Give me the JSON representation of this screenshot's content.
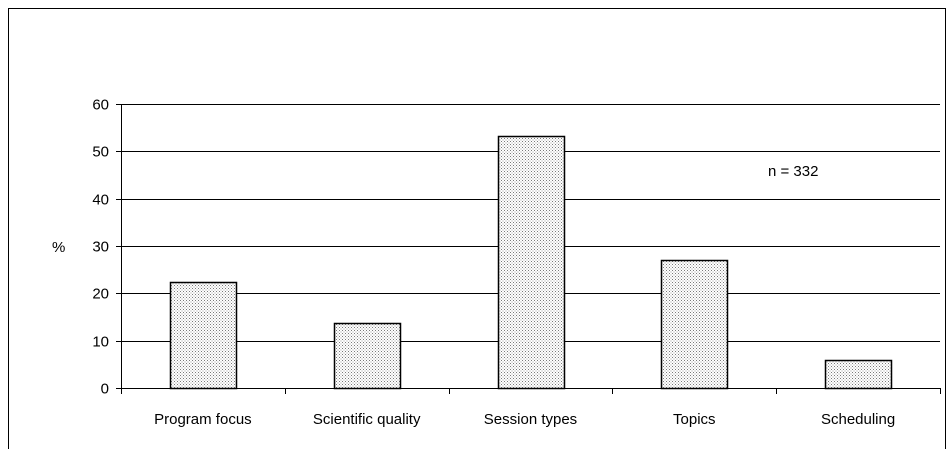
{
  "chart_data": {
    "type": "bar",
    "categories": [
      "Program focus",
      "Scientific quality",
      "Session types",
      "Topics",
      "Scheduling"
    ],
    "values": [
      22.3,
      13.8,
      53.2,
      27,
      6
    ],
    "xlabel": "",
    "ylabel": "%",
    "ylim": [
      0,
      60
    ],
    "yticks": [
      "0",
      "10",
      "20",
      "30",
      "40",
      "50",
      "60"
    ],
    "annotation": "n = 332",
    "grid": true,
    "legend": "none",
    "bar_fill": "#e6e6e6",
    "bar_stroke": "#000000"
  }
}
